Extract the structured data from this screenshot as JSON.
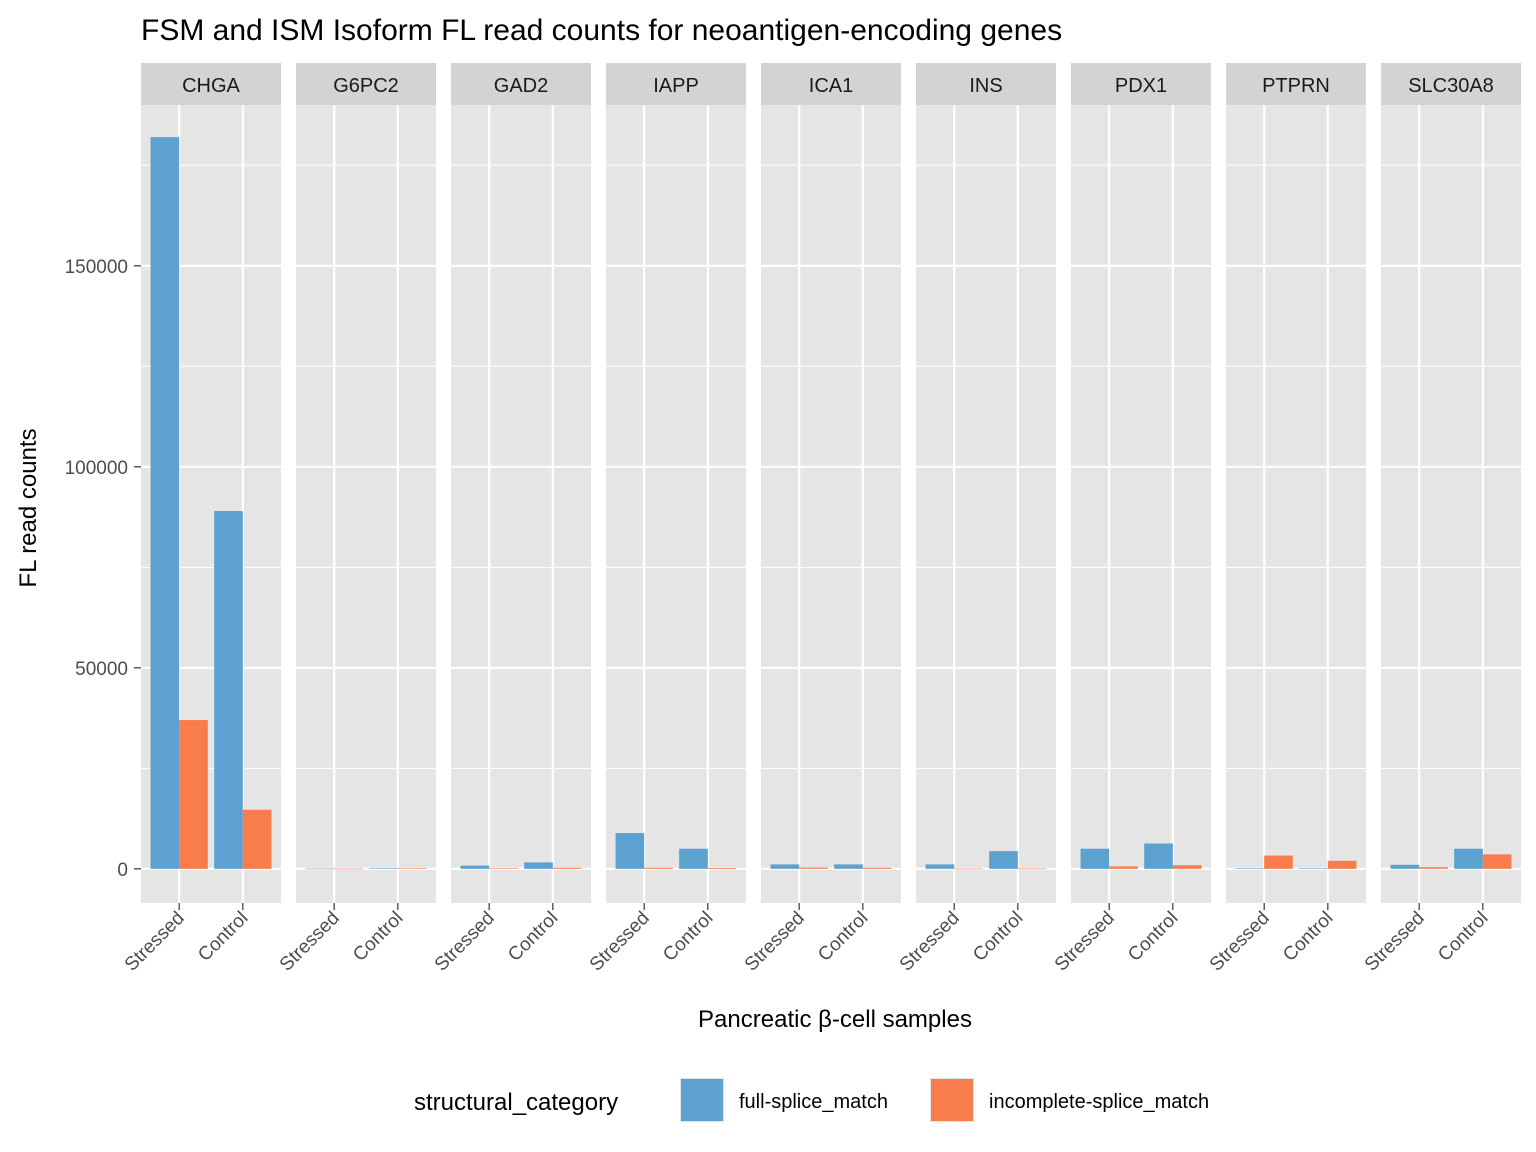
{
  "chart_data": {
    "type": "bar",
    "title": "FSM and ISM Isoform FL read counts for neoantigen-encoding genes",
    "xlabel": "Pancreatic β-cell samples",
    "ylabel": "FL read counts",
    "ylim": [
      -8500,
      190000
    ],
    "yticks": [
      0,
      50000,
      100000,
      150000
    ],
    "ytick_labels": [
      "0",
      "50000",
      "100000",
      "150000"
    ],
    "categories": [
      "Stressed",
      "Control"
    ],
    "grid": true,
    "legend": {
      "title": "structural_category",
      "position": "bottom",
      "entries": [
        "full-splice_match",
        "incomplete-splice_match"
      ]
    },
    "facets": [
      {
        "label": "CHGA",
        "series": [
          {
            "name": "full-splice_match",
            "values": [
              182000,
              89000
            ]
          },
          {
            "name": "incomplete-splice_match",
            "values": [
              37000,
              14700
            ]
          }
        ]
      },
      {
        "label": "G6PC2",
        "series": [
          {
            "name": "full-splice_match",
            "values": [
              60,
              120
            ]
          },
          {
            "name": "incomplete-splice_match",
            "values": [
              40,
              150
            ]
          }
        ]
      },
      {
        "label": "GAD2",
        "series": [
          {
            "name": "full-splice_match",
            "values": [
              800,
              1600
            ]
          },
          {
            "name": "incomplete-splice_match",
            "values": [
              100,
              250
            ]
          }
        ]
      },
      {
        "label": "IAPP",
        "series": [
          {
            "name": "full-splice_match",
            "values": [
              8900,
              5000
            ]
          },
          {
            "name": "incomplete-splice_match",
            "values": [
              250,
              200
            ]
          }
        ]
      },
      {
        "label": "ICA1",
        "series": [
          {
            "name": "full-splice_match",
            "values": [
              1100,
              1100
            ]
          },
          {
            "name": "incomplete-splice_match",
            "values": [
              300,
              250
            ]
          }
        ]
      },
      {
        "label": "INS",
        "series": [
          {
            "name": "full-splice_match",
            "values": [
              1100,
              4400
            ]
          },
          {
            "name": "incomplete-splice_match",
            "values": [
              50,
              70
            ]
          }
        ]
      },
      {
        "label": "PDX1",
        "series": [
          {
            "name": "full-splice_match",
            "values": [
              5000,
              6300
            ]
          },
          {
            "name": "incomplete-splice_match",
            "values": [
              600,
              900
            ]
          }
        ]
      },
      {
        "label": "PTPRN",
        "series": [
          {
            "name": "full-splice_match",
            "values": [
              100,
              100
            ]
          },
          {
            "name": "incomplete-splice_match",
            "values": [
              3300,
              2000
            ]
          }
        ]
      },
      {
        "label": "SLC30A8",
        "series": [
          {
            "name": "full-splice_match",
            "values": [
              1000,
              5000
            ]
          },
          {
            "name": "incomplete-splice_match",
            "values": [
              400,
              3600
            ]
          }
        ]
      }
    ]
  },
  "colors": {
    "full-splice_match": "#5ca1cf",
    "incomplete-splice_match": "#f87c4c",
    "panel_bg": "#e5e5e5",
    "strip_bg": "#d3d3d3",
    "grid": "#ffffff"
  }
}
